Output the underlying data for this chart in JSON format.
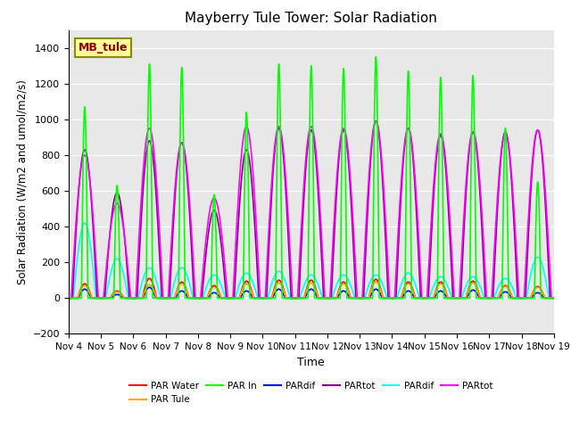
{
  "title": "Mayberry Tule Tower: Solar Radiation",
  "ylabel": "Solar Radiation (W/m2 and umol/m2/s)",
  "xlabel": "Time",
  "site_label": "MB_tule",
  "ylim": [
    -200,
    1500
  ],
  "yticks": [
    -200,
    0,
    200,
    400,
    600,
    800,
    1000,
    1200,
    1400
  ],
  "x_tick_labels": [
    "Nov 4",
    "Nov 5",
    "Nov 6",
    "Nov 7",
    "Nov 8",
    "Nov 9",
    "Nov 10",
    "Nov 11",
    "Nov 12",
    "Nov 13",
    "Nov 14",
    "Nov 15",
    "Nov 16",
    "Nov 17",
    "Nov 18",
    "Nov 19"
  ],
  "series": {
    "PAR_Water": {
      "color": "#ff0000",
      "label": "PAR Water"
    },
    "PAR_Tule": {
      "color": "#ffa500",
      "label": "PAR Tule"
    },
    "PAR_In": {
      "color": "#00ff00",
      "label": "PAR In"
    },
    "PARdif1": {
      "color": "#0000ff",
      "label": "PARdif"
    },
    "PARtot1": {
      "color": "#8b008b",
      "label": "PARtot"
    },
    "PARdif2": {
      "color": "#00ffff",
      "label": "PARdif"
    },
    "PARtot2": {
      "color": "#ff00ff",
      "label": "PARtot"
    }
  },
  "background_color": "#e8e8e8",
  "days": 15,
  "day_peaks": {
    "PAR_In": [
      1070,
      630,
      1310,
      1290,
      580,
      1040,
      1310,
      1300,
      1285,
      1350,
      1270,
      1235,
      1245,
      950,
      650
    ],
    "PAR_Water": [
      80,
      40,
      110,
      90,
      70,
      95,
      100,
      100,
      90,
      105,
      90,
      90,
      95,
      70,
      65
    ],
    "PAR_Tule": [
      70,
      35,
      75,
      80,
      60,
      80,
      85,
      85,
      80,
      90,
      80,
      80,
      85,
      65,
      60
    ],
    "PARdif1": [
      50,
      20,
      60,
      40,
      30,
      40,
      50,
      50,
      40,
      50,
      40,
      40,
      45,
      35,
      30
    ],
    "PARtot1": [
      830,
      590,
      880,
      870,
      490,
      830,
      950,
      940,
      940,
      990,
      950,
      910,
      930,
      930,
      940
    ],
    "PARdif2": [
      420,
      220,
      170,
      170,
      130,
      140,
      150,
      130,
      130,
      130,
      140,
      120,
      120,
      110,
      230
    ],
    "PARtot2": [
      800,
      530,
      950,
      870,
      560,
      960,
      960,
      960,
      950,
      990,
      950,
      920,
      930,
      920,
      940
    ]
  },
  "day_widths": {
    "PAR_In": 0.1,
    "PAR_Water": 0.22,
    "PAR_Tule": 0.22,
    "PARdif1": 0.2,
    "PARtot1": 0.38,
    "PARdif2": 0.35,
    "PARtot2": 0.42
  }
}
